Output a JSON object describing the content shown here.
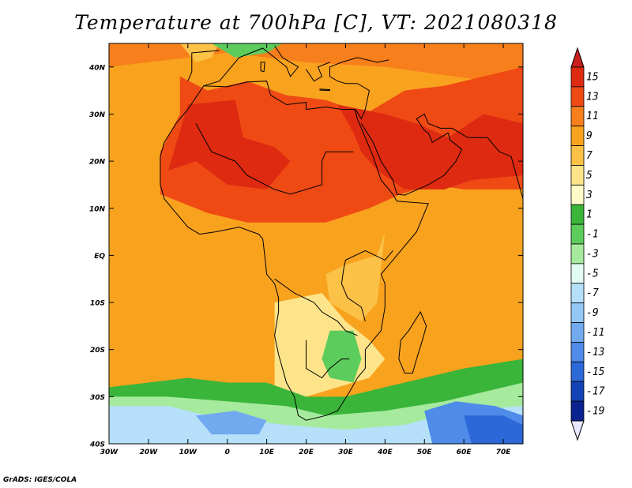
{
  "title": "Temperature at 700hPa [C], VT: 2021080318",
  "credit": "GrADS: IGES/COLA",
  "map": {
    "lon_range": [
      -30,
      75
    ],
    "lat_range": [
      -40,
      45
    ],
    "lon_ticks": [
      {
        "value": -30,
        "label": "30W"
      },
      {
        "value": -20,
        "label": "20W"
      },
      {
        "value": -10,
        "label": "10W"
      },
      {
        "value": 0,
        "label": "0"
      },
      {
        "value": 10,
        "label": "10E"
      },
      {
        "value": 20,
        "label": "20E"
      },
      {
        "value": 30,
        "label": "30E"
      },
      {
        "value": 40,
        "label": "40E"
      },
      {
        "value": 50,
        "label": "50E"
      },
      {
        "value": 60,
        "label": "60E"
      },
      {
        "value": 70,
        "label": "70E"
      }
    ],
    "lat_ticks": [
      {
        "value": 40,
        "label": "40N"
      },
      {
        "value": 30,
        "label": "30N"
      },
      {
        "value": 20,
        "label": "20N"
      },
      {
        "value": 10,
        "label": "10N"
      },
      {
        "value": 0,
        "label": "EQ"
      },
      {
        "value": -10,
        "label": "10S"
      },
      {
        "value": -20,
        "label": "20S"
      },
      {
        "value": -30,
        "label": "30S"
      },
      {
        "value": -40,
        "label": "40S"
      }
    ]
  },
  "colorbar": {
    "labels": [
      "15",
      "13",
      "11",
      "9",
      "7",
      "5",
      "3",
      "1",
      "-1",
      "-3",
      "-5",
      "-7",
      "-9",
      "-11",
      "-13",
      "-15",
      "-17",
      "-19"
    ],
    "colors": [
      "#dd2a10",
      "#ef4a14",
      "#f77f1c",
      "#f9a21e",
      "#fbc247",
      "#fde48a",
      "#fffbc8",
      "#3ab53a",
      "#5ccc5c",
      "#a6ea9e",
      "#e2fbf3",
      "#b6e0fa",
      "#93c8f6",
      "#72aaf0",
      "#4f8be8",
      "#2d68d8",
      "#1443b8",
      "#0a2390"
    ],
    "top_color": "#c8201e",
    "bottom_color": "#e8e8ff"
  }
}
